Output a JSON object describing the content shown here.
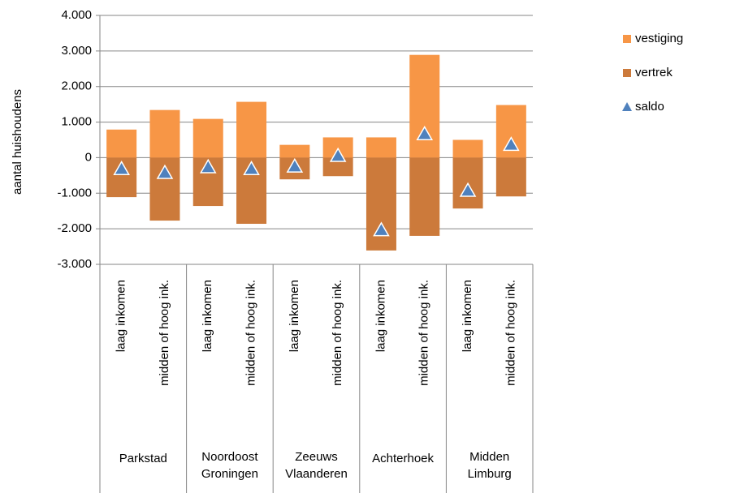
{
  "chart_data": {
    "type": "bar",
    "y_label": "aantal huishoudens",
    "groups": [
      "Parkstad",
      "Noordoost Groningen",
      "Zeeuws Vlaanderen",
      "Achterhoek",
      "Midden Limburg"
    ],
    "categories": [
      "laag inkomen",
      "midden of hoog ink.",
      "laag inkomen",
      "midden of hoog ink.",
      "laag inkomen",
      "midden of hoog ink.",
      "laag inkomen",
      "midden of hoog ink.",
      "laag inkomen",
      "midden of hoog ink."
    ],
    "series": [
      {
        "name": "vestiging",
        "color": "#f79646",
        "values": [
          790,
          1340,
          1090,
          1570,
          360,
          570,
          570,
          2890,
          500,
          1480
        ]
      },
      {
        "name": "vertrek",
        "color": "#cc7a3b",
        "values": [
          -1110,
          -1770,
          -1360,
          -1860,
          -610,
          -520,
          -2610,
          -2200,
          -1430,
          -1090
        ]
      },
      {
        "name": "saldo",
        "color": "#4f81bd",
        "values": [
          -320,
          -430,
          -270,
          -320,
          -250,
          50,
          -2040,
          660,
          -930,
          360
        ]
      }
    ],
    "ylim": [
      -3000,
      4000
    ],
    "yticks": [
      {
        "value": -3000,
        "label": "-3.000"
      },
      {
        "value": -2000,
        "label": "-2.000"
      },
      {
        "value": -1000,
        "label": "-1.000"
      },
      0,
      {
        "value": 1000,
        "label": "1.000"
      },
      {
        "value": 2000,
        "label": "2.000"
      },
      {
        "value": 3000,
        "label": "3.000"
      },
      {
        "value": 4000,
        "label": "4.000"
      }
    ],
    "grid": true,
    "legend": "right"
  }
}
